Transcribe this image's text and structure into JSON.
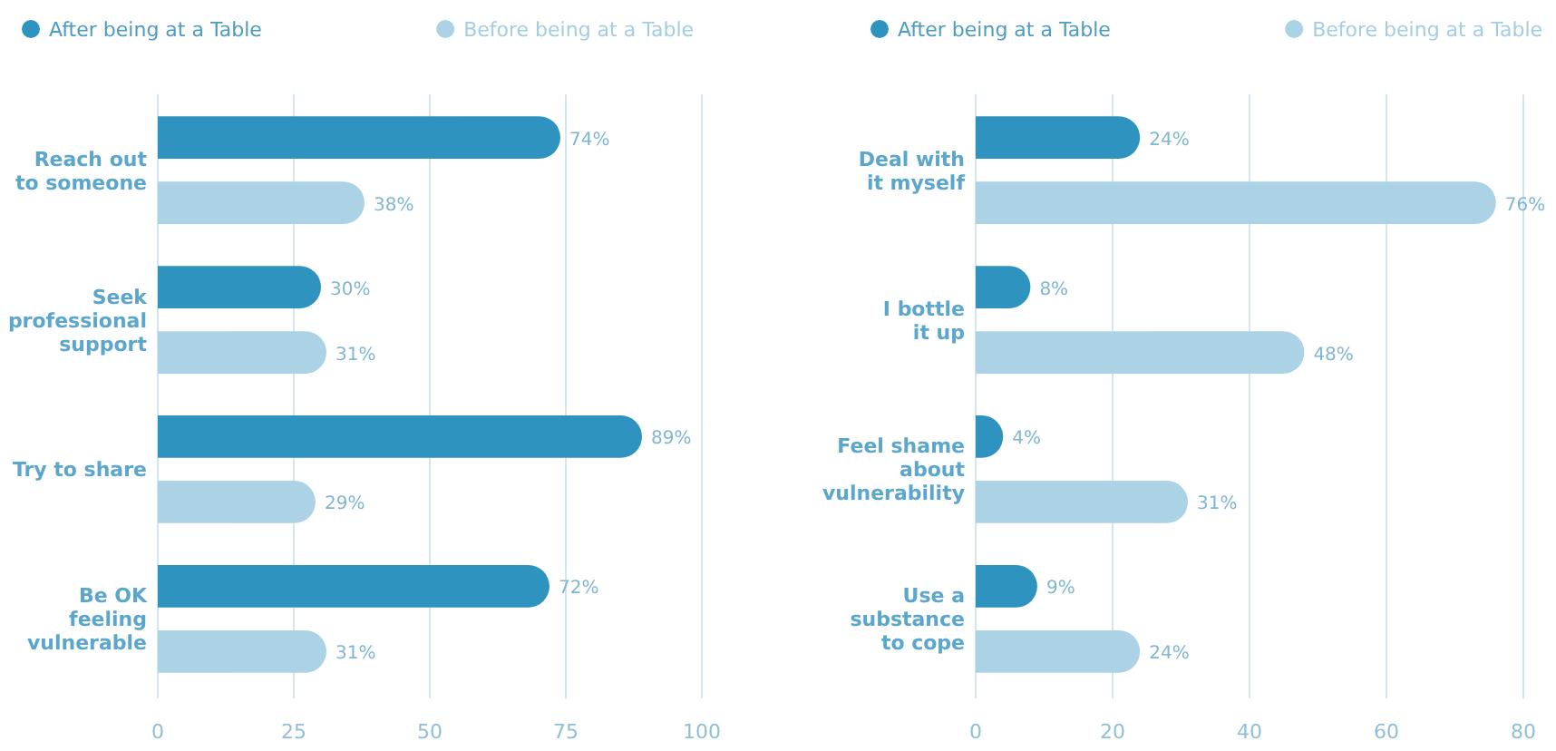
{
  "chart_data": [
    {
      "type": "bar",
      "orientation": "horizontal",
      "categories": [
        "Reach out\nto someone",
        "Seek\nprofessional\nsupport",
        "Try to share",
        "Be OK\nfeeling\nvulnerable"
      ],
      "series": [
        {
          "name": "After being at a Table",
          "color": "#2f93bf",
          "values": [
            74,
            30,
            89,
            72
          ],
          "value_labels": [
            "74%",
            "30%",
            "89%",
            "72%"
          ]
        },
        {
          "name": "Before being at a Table",
          "color": "#abd3e5",
          "values": [
            38,
            31,
            29,
            31
          ],
          "value_labels": [
            "38%",
            "31%",
            "29%",
            "31%"
          ]
        }
      ],
      "xlim": [
        0,
        100
      ],
      "xticks": [
        0,
        25,
        50,
        75,
        100
      ],
      "grid": "x",
      "legend": "top left"
    },
    {
      "type": "bar",
      "orientation": "horizontal",
      "categories": [
        "Deal with\nit myself",
        "I bottle\nit up",
        "Feel shame\nabout\nvulnerability",
        "Use a\nsubstance\nto cope"
      ],
      "series": [
        {
          "name": "After being at a Table",
          "color": "#2f93bf",
          "values": [
            24,
            8,
            4,
            9
          ],
          "value_labels": [
            "24%",
            "8%",
            "4%",
            "9%"
          ]
        },
        {
          "name": "Before being at a Table",
          "color": "#abd3e5",
          "values": [
            76,
            48,
            31,
            24
          ],
          "value_labels": [
            "76%",
            "48%",
            "31%",
            "24%"
          ]
        }
      ],
      "xlim": [
        0,
        80
      ],
      "xticks": [
        0,
        20,
        40,
        60,
        80
      ],
      "grid": "x",
      "legend": "top left"
    }
  ]
}
